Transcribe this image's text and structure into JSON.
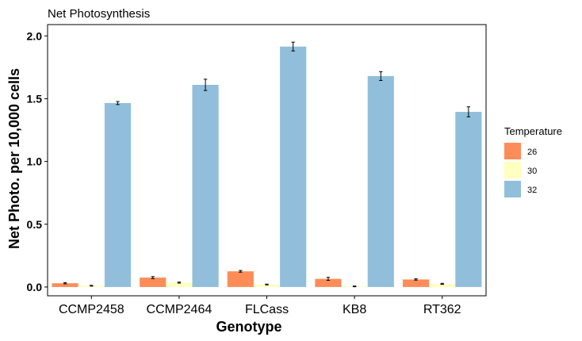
{
  "chart_data": {
    "type": "bar",
    "title": "Net Photosynthesis",
    "xlabel": "Genotype",
    "ylabel": "Net Photo. per 10,000 cells",
    "ylim": [
      -0.07,
      2.09
    ],
    "yticks": [
      "0.0",
      "0.5",
      "1.0",
      "1.5",
      "2.0"
    ],
    "grid": false,
    "categories": [
      "CCMP2458",
      "CCMP2464",
      "FLCass",
      "KB8",
      "RT362"
    ],
    "legend": {
      "title": "Temperature",
      "placement": "right"
    },
    "series": [
      {
        "name": "26",
        "color": "#FC8D59",
        "values": [
          0.03,
          0.075,
          0.125,
          0.065,
          0.06
        ],
        "errors": [
          0.005,
          0.008,
          0.007,
          0.012,
          0.005
        ]
      },
      {
        "name": "30",
        "color": "#FFFFBF",
        "values": [
          0.01,
          0.035,
          0.02,
          0.005,
          0.025
        ],
        "errors": [
          0.003,
          0.004,
          0.003,
          0.003,
          0.004
        ]
      },
      {
        "name": "32",
        "color": "#91BFDB",
        "values": [
          1.465,
          1.61,
          1.915,
          1.68,
          1.395
        ],
        "errors": [
          0.012,
          0.045,
          0.035,
          0.035,
          0.04
        ]
      }
    ]
  }
}
